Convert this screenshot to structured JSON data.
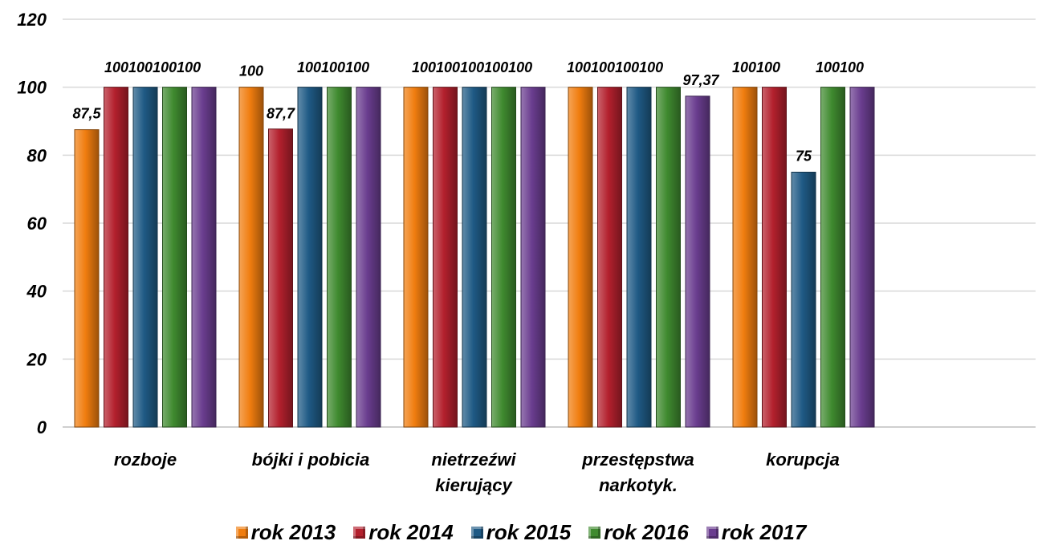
{
  "chart_data": {
    "type": "bar",
    "title": "",
    "xlabel": "",
    "ylabel": "",
    "ylim": [
      0,
      120
    ],
    "yticks": [
      0,
      20,
      40,
      60,
      80,
      100,
      120
    ],
    "grid": true,
    "legend_position": "bottom",
    "categories": [
      [
        "rozboje"
      ],
      [
        "bójki i pobicia"
      ],
      [
        "nietrzeźwi",
        "kierujący"
      ],
      [
        "przestępstwa",
        "narkotyk."
      ],
      [
        "korupcja"
      ]
    ],
    "series": [
      {
        "name": "rok 2013",
        "color": "#f07d0f",
        "values": [
          87.5,
          100,
          100,
          100,
          100
        ],
        "labels": [
          "87,5",
          "100",
          "",
          "",
          ""
        ]
      },
      {
        "name": "rok 2014",
        "color": "#b3202d",
        "values": [
          100,
          87.7,
          100,
          100,
          100
        ],
        "labels": [
          "",
          "87,7",
          "",
          "",
          ""
        ]
      },
      {
        "name": "rok 2015",
        "color": "#1f5a85",
        "values": [
          100,
          100,
          100,
          100,
          75
        ],
        "labels": [
          "",
          "",
          "",
          "",
          "75"
        ]
      },
      {
        "name": "rok 2016",
        "color": "#3f8a2f",
        "values": [
          100,
          100,
          100,
          100,
          100
        ],
        "labels": [
          "",
          "",
          "",
          "",
          ""
        ]
      },
      {
        "name": "rok 2017",
        "color": "#6a3d8f",
        "values": [
          100,
          100,
          100,
          97.37,
          100
        ],
        "labels": [
          "",
          "",
          "",
          "97,37",
          ""
        ]
      }
    ],
    "top_labels": [
      "100100100100",
      "100100100",
      "100100100100100",
      "100100100100",
      "100100"
    ]
  }
}
